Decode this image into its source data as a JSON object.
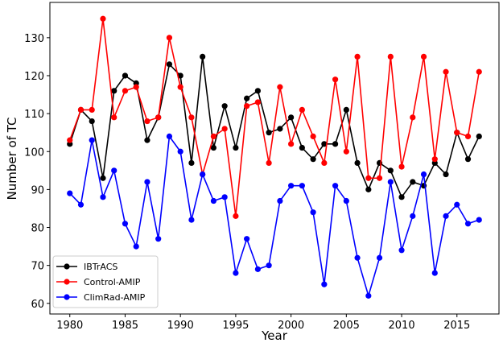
{
  "chart_data": {
    "type": "line",
    "xlabel": "Year",
    "ylabel": "Number of TC",
    "xlim": [
      1978.2,
      2018.8
    ],
    "ylim": [
      57.2,
      139.3
    ],
    "xticks": [
      1980,
      1985,
      1990,
      1995,
      2000,
      2005,
      2010,
      2015
    ],
    "yticks": [
      60,
      70,
      80,
      90,
      100,
      110,
      120,
      130
    ],
    "grid": false,
    "legend_position": "bottom-left",
    "x": [
      1980,
      1981,
      1982,
      1983,
      1984,
      1985,
      1986,
      1987,
      1988,
      1989,
      1990,
      1991,
      1992,
      1993,
      1994,
      1995,
      1996,
      1997,
      1998,
      1999,
      2000,
      2001,
      2002,
      2003,
      2004,
      2005,
      2006,
      2007,
      2008,
      2009,
      2010,
      2011,
      2012,
      2013,
      2014,
      2015,
      2016,
      2017
    ],
    "series": [
      {
        "name": "IBTrACS",
        "color": "#000000",
        "values": [
          102,
          111,
          108,
          93,
          116,
          120,
          118,
          103,
          109,
          123,
          120,
          97,
          125,
          101,
          112,
          101,
          114,
          116,
          105,
          106,
          109,
          101,
          98,
          102,
          102,
          111,
          97,
          90,
          97,
          95,
          88,
          92,
          91,
          97,
          94,
          105,
          98,
          104
        ]
      },
      {
        "name": "Control-AMIP",
        "color": "#ff0000",
        "values": [
          103,
          111,
          111,
          135,
          109,
          116,
          117,
          108,
          109,
          130,
          117,
          109,
          94,
          104,
          106,
          83,
          112,
          113,
          97,
          117,
          102,
          111,
          104,
          97,
          119,
          100,
          125,
          93,
          93,
          125,
          96,
          109,
          125,
          98,
          121,
          105,
          104,
          121
        ]
      },
      {
        "name": "ClimRad-AMIP",
        "color": "#0000ff",
        "values": [
          89,
          86,
          103,
          88,
          95,
          81,
          75,
          92,
          77,
          104,
          100,
          82,
          94,
          87,
          88,
          68,
          77,
          69,
          70,
          87,
          91,
          91,
          84,
          65,
          91,
          87,
          72,
          62,
          72,
          92,
          74,
          83,
          94,
          68,
          83,
          86,
          81,
          82
        ]
      }
    ]
  }
}
